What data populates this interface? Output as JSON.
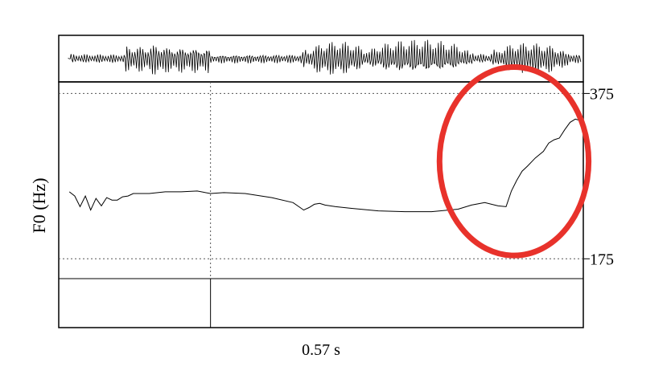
{
  "chart_data": {
    "type": "line",
    "ylabel": "F0 (Hz)",
    "xlabel": "",
    "cursor_label": "0.57 s",
    "cursor_time": 0.57,
    "xlim": [
      0,
      1.97
    ],
    "y_ticks": [
      175,
      375
    ],
    "y_tick_labels": [
      "175",
      "375"
    ],
    "ylim": [
      151,
      389
    ],
    "colors": {
      "curve": "#000000",
      "grid": "#555555",
      "highlight": "#e8322b"
    },
    "series": [
      {
        "x": [
          0.04,
          0.06,
          0.08,
          0.1,
          0.12,
          0.14,
          0.16,
          0.18,
          0.2,
          0.22,
          0.24,
          0.26,
          0.28,
          0.3,
          0.34,
          0.4,
          0.46,
          0.52,
          0.57,
          0.62,
          0.7,
          0.8,
          0.88,
          0.92,
          0.94,
          0.96,
          0.98,
          1.0,
          1.04,
          1.1,
          1.2,
          1.3,
          1.4,
          1.5,
          1.55,
          1.6,
          1.65,
          1.68,
          1.7,
          1.72,
          1.74,
          1.76,
          1.79,
          1.82,
          1.84,
          1.86,
          1.88,
          1.9,
          1.92,
          1.94,
          1.96
        ],
        "y": [
          256,
          251,
          238,
          251,
          234,
          248,
          239,
          249,
          246,
          246,
          250,
          251,
          254,
          254,
          254,
          256,
          256,
          257,
          254,
          255,
          254,
          249,
          243,
          234,
          237,
          241,
          242,
          240,
          238,
          236,
          233,
          232,
          232,
          235,
          240,
          243,
          239,
          238,
          257,
          270,
          281,
          287,
          297,
          305,
          315,
          319,
          321,
          331,
          340,
          344,
          342
        ]
      }
    ],
    "annotations": [
      {
        "type": "ellipse",
        "color": "#e8322b",
        "cx": 1.71,
        "cy": 293,
        "rx": 0.28,
        "ry": 114
      }
    ]
  }
}
